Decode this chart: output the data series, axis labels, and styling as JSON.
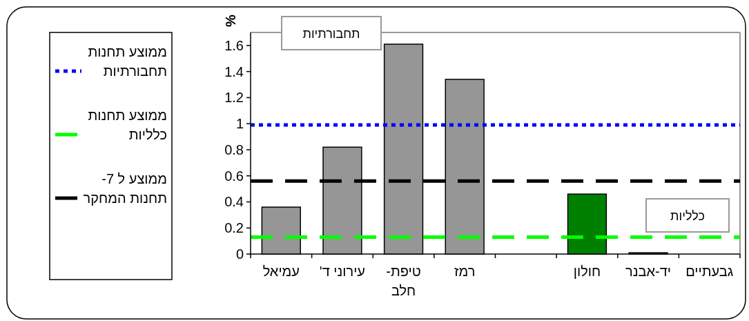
{
  "chart_data": {
    "type": "bar",
    "ylabel": "%",
    "categories": [
      "עמיאל",
      "עירוני ד'",
      "טיפת-חלב",
      "רמז",
      null,
      "חולון",
      "יד-אבנר",
      "גבעתיים"
    ],
    "values": [
      0.36,
      0.82,
      1.61,
      1.34,
      null,
      0.46,
      0.01,
      null
    ],
    "colors": [
      "#969696",
      "#969696",
      "#969696",
      "#969696",
      null,
      "#008000",
      "#008000",
      null
    ],
    "ylim": [
      0,
      1.7
    ],
    "yticks": [
      0,
      0.2,
      0.4,
      0.6,
      0.8,
      1,
      1.2,
      1.4,
      1.6
    ],
    "legend": "left",
    "ref_lines": [
      {
        "axis": "y",
        "value": 0.99,
        "label": "ממוצע תחנות תחבורתיות",
        "color": "#0000ff",
        "line_style": "dotted"
      },
      {
        "axis": "y",
        "value": 0.13,
        "label": "ממוצע תחנות כלליות",
        "color": "#00ff00",
        "line_style": "dashed"
      },
      {
        "axis": "y",
        "value": 0.56,
        "label": "ממוצע ל 7- תחנות המחקר",
        "color": "#000000",
        "line_style": "dashed"
      }
    ],
    "annotations": [
      "תחבורתיות",
      "כלליות"
    ]
  }
}
